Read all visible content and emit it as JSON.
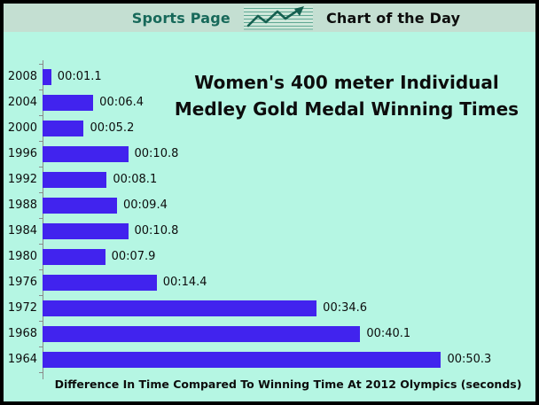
{
  "header": {
    "left_label": "Sports Page",
    "right_label": "Chart of the Day",
    "icon": "line-chart-icon"
  },
  "colors": {
    "header_bg": "#c4dfd2",
    "chart_bg": "#b5f6e3",
    "bar": "#4123ee",
    "header_text_green": "#17695a",
    "axis": "#8a8a8a",
    "text": "#0d0d0d"
  },
  "chart_data": {
    "type": "bar",
    "orientation": "horizontal",
    "title": "Women's 400 meter Individual Medley Gold Medal Winning Times",
    "xlabel": "Difference In Time Compared To Winning Time At 2012 Olympics (seconds)",
    "categories": [
      "2008",
      "2004",
      "2000",
      "1996",
      "1992",
      "1988",
      "1984",
      "1980",
      "1976",
      "1972",
      "1968",
      "1964"
    ],
    "values": [
      1.1,
      6.4,
      5.2,
      10.8,
      8.1,
      9.4,
      10.8,
      7.9,
      14.4,
      34.6,
      40.1,
      50.3
    ],
    "value_labels": [
      "00:01.1",
      "00:06.4",
      "00:05.2",
      "00:10.8",
      "00:08.1",
      "00:09.4",
      "00:10.8",
      "00:07.9",
      "00:14.4",
      "00:34.6",
      "00:40.1",
      "00:50.3"
    ],
    "xlim": [
      0,
      62
    ],
    "grid": false,
    "legend": "none",
    "bar_color": "#4123ee"
  }
}
